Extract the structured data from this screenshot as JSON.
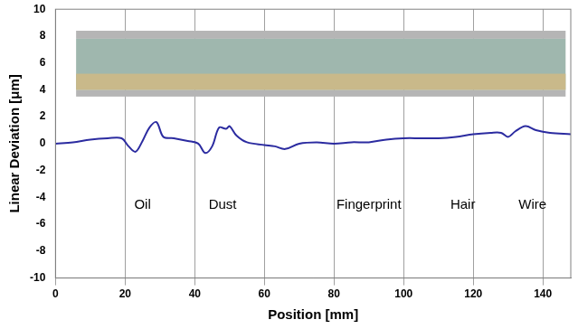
{
  "chart_data": {
    "type": "line",
    "x_label": "Position [mm]",
    "y_label": "Linear Deviation [μm]",
    "xlim": [
      0,
      148
    ],
    "xticks": [
      0,
      20,
      40,
      60,
      80,
      100,
      120,
      140
    ],
    "ylim": [
      -10,
      10
    ],
    "yticks": [
      -10,
      -8,
      -6,
      -4,
      -2,
      0,
      2,
      4,
      6,
      8,
      10
    ],
    "grid": true,
    "series": [
      {
        "name": "Linear Deviation",
        "color": "#2b2ba0",
        "marker": "none",
        "line_style": "solid",
        "x": [
          0,
          5,
          10,
          15,
          19,
          21,
          23,
          25,
          27,
          29,
          31,
          34,
          38,
          41,
          43,
          45,
          47,
          49,
          50,
          52,
          55,
          60,
          63,
          66,
          70,
          75,
          80,
          85,
          90,
          95,
          100,
          105,
          110,
          115,
          120,
          125,
          128,
          130,
          132,
          135,
          138,
          142,
          148
        ],
        "values": [
          0,
          0.1,
          0.3,
          0.4,
          0.4,
          -0.2,
          -0.6,
          0.2,
          1.2,
          1.6,
          0.5,
          0.4,
          0.2,
          0,
          -0.7,
          -0.2,
          1.2,
          1.1,
          1.3,
          0.6,
          0.1,
          -0.1,
          -0.2,
          -0.4,
          0,
          0.1,
          0,
          0.1,
          0.1,
          0.3,
          0.4,
          0.4,
          0.4,
          0.5,
          0.7,
          0.8,
          0.8,
          0.5,
          0.9,
          1.3,
          1.0,
          0.8,
          0.7
        ]
      }
    ],
    "annotations": [
      {
        "text": "Oil",
        "x": 25,
        "y": -4.6
      },
      {
        "text": "Dust",
        "x": 48,
        "y": -4.6
      },
      {
        "text": "Fingerprint",
        "x": 90,
        "y": -4.6
      },
      {
        "text": "Hair",
        "x": 117,
        "y": -4.6
      },
      {
        "text": "Wire",
        "x": 137,
        "y": -4.6
      }
    ]
  }
}
